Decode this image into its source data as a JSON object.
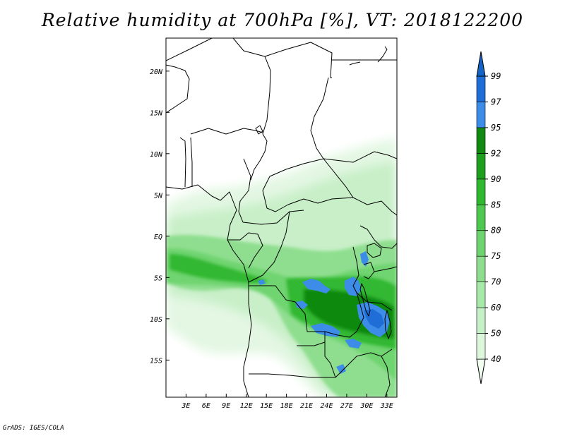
{
  "title": "Relative humidity at 700hPa [%], VT: 2018122200",
  "credit": "GrADS: IGES/COLA",
  "map": {
    "lon_range": [
      0,
      34.5
    ],
    "lat_range": [
      -19.5,
      24
    ],
    "x_ticks": [
      "3E",
      "6E",
      "9E",
      "12E",
      "15E",
      "18E",
      "21E",
      "24E",
      "27E",
      "30E",
      "33E"
    ],
    "y_ticks": [
      "20N",
      "15N",
      "10N",
      "5N",
      "EQ",
      "5S",
      "10S",
      "15S"
    ],
    "colorbar": {
      "levels": [
        "40",
        "50",
        "60",
        "70",
        "75",
        "80",
        "85",
        "90",
        "92",
        "95",
        "97",
        "99"
      ],
      "colors": [
        "#f0fff0",
        "#dcf7dc",
        "#c6f0c6",
        "#a8e8a8",
        "#8fde8f",
        "#6fd46f",
        "#4fc84f",
        "#30b830",
        "#1f9f1f",
        "#118a11",
        "#3c8ce8",
        "#1f6ed8",
        "#1464c8"
      ]
    }
  }
}
